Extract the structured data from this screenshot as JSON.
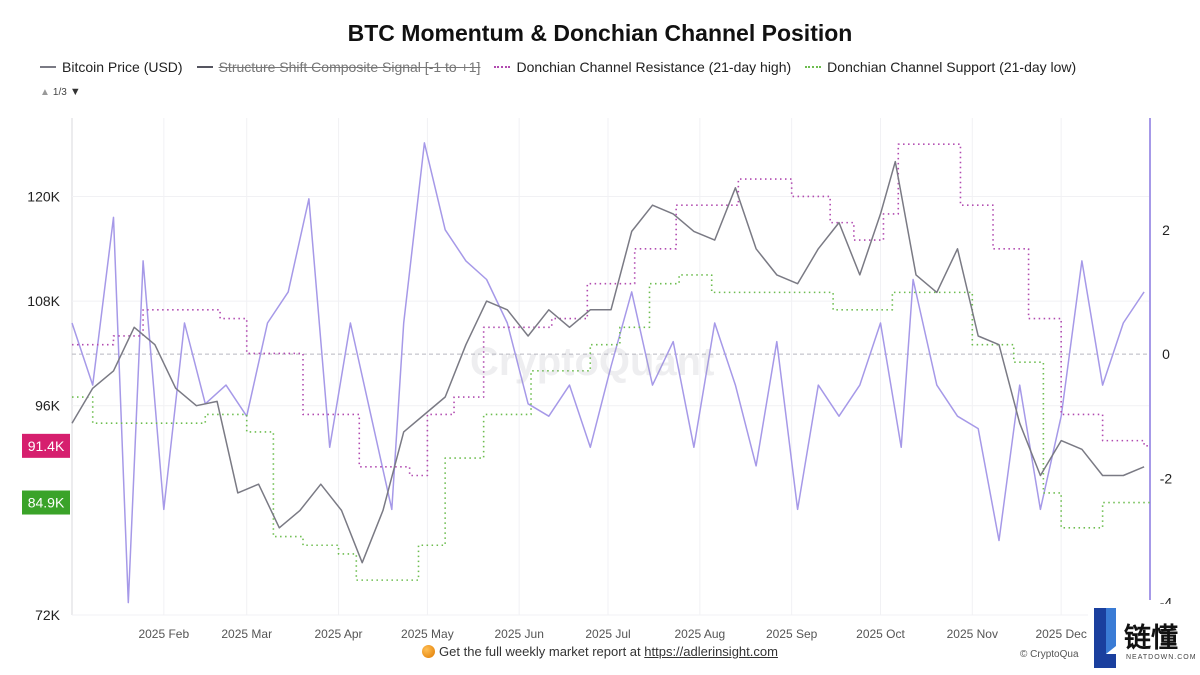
{
  "chart_data": {
    "type": "line",
    "title": "BTC Momentum & Donchian Channel Position",
    "x_axis": {
      "ticks": [
        "2025 Feb",
        "2025 Mar",
        "2025 Apr",
        "2025 May",
        "2025 Jun",
        "2025 Jul",
        "2025 Aug",
        "2025 Sep",
        "2025 Oct",
        "2025 Nov",
        "2025 Dec"
      ]
    },
    "y_axis_left": {
      "min": 72000,
      "max": 129000,
      "ticks": [
        "72K",
        "96K",
        "108K",
        "120K"
      ]
    },
    "y_axis_right": {
      "min": -4.2,
      "max": 3.8,
      "ticks": [
        "2",
        "0",
        "-2",
        "-4"
      ]
    },
    "legend_placement": "top",
    "grid": true,
    "series": [
      {
        "name": "Bitcoin Price (USD)",
        "axis": "left",
        "color": "#7a7a84",
        "visible": true,
        "style": "solid",
        "x": [
          "2025-01-01",
          "2025-01-08",
          "2025-01-15",
          "2025-01-22",
          "2025-01-29",
          "2025-02-05",
          "2025-02-12",
          "2025-02-19",
          "2025-02-26",
          "2025-03-05",
          "2025-03-12",
          "2025-03-19",
          "2025-03-26",
          "2025-04-02",
          "2025-04-09",
          "2025-04-16",
          "2025-04-23",
          "2025-04-30",
          "2025-05-07",
          "2025-05-14",
          "2025-05-21",
          "2025-05-28",
          "2025-06-04",
          "2025-06-11",
          "2025-06-18",
          "2025-06-25",
          "2025-07-02",
          "2025-07-09",
          "2025-07-16",
          "2025-07-23",
          "2025-07-30",
          "2025-08-06",
          "2025-08-13",
          "2025-08-20",
          "2025-08-27",
          "2025-09-03",
          "2025-09-10",
          "2025-09-17",
          "2025-09-24",
          "2025-10-01",
          "2025-10-06",
          "2025-10-13",
          "2025-10-20",
          "2025-10-27",
          "2025-11-03",
          "2025-11-10",
          "2025-11-17",
          "2025-11-24",
          "2025-12-01",
          "2025-12-08",
          "2025-12-15",
          "2025-12-22",
          "2025-12-29"
        ],
        "y": [
          94000,
          98000,
          100000,
          105000,
          103000,
          98000,
          96000,
          96500,
          86000,
          87000,
          82000,
          84000,
          87000,
          84000,
          78000,
          84000,
          93000,
          95000,
          97000,
          103000,
          108000,
          107000,
          104000,
          107000,
          105000,
          107000,
          107000,
          116000,
          119000,
          118000,
          116000,
          115000,
          121000,
          114000,
          111000,
          110000,
          114000,
          117000,
          111000,
          118000,
          124000,
          111000,
          109000,
          114000,
          104000,
          103000,
          94000,
          88000,
          92000,
          91000,
          88000,
          88000,
          89000
        ]
      },
      {
        "name": "Structure Shift Composite Signal [-1 to +1]",
        "axis": "right",
        "color": "#555560",
        "visible": false,
        "style": "solid"
      },
      {
        "name": "Donchian Channel Resistance (21-day high)",
        "axis": "left",
        "color": "#b14ab0",
        "visible": true,
        "style": "dotted",
        "x": [
          "2025-01-01",
          "2025-01-15",
          "2025-01-25",
          "2025-02-20",
          "2025-03-01",
          "2025-03-20",
          "2025-04-08",
          "2025-04-25",
          "2025-05-01",
          "2025-05-10",
          "2025-05-20",
          "2025-06-12",
          "2025-06-24",
          "2025-07-10",
          "2025-07-24",
          "2025-08-14",
          "2025-09-01",
          "2025-09-14",
          "2025-09-22",
          "2025-10-02",
          "2025-10-07",
          "2025-10-28",
          "2025-11-08",
          "2025-11-20",
          "2025-12-01",
          "2025-12-15",
          "2025-12-29"
        ],
        "y": [
          103000,
          104000,
          107000,
          106000,
          102000,
          95000,
          89000,
          88000,
          95000,
          97000,
          105000,
          106000,
          110000,
          114000,
          119000,
          122000,
          120000,
          117000,
          115000,
          118000,
          126000,
          119000,
          114000,
          106000,
          95000,
          92000,
          91400
        ]
      },
      {
        "name": "Donchian Channel Support (21-day low)",
        "axis": "left",
        "color": "#6dbd4f",
        "visible": true,
        "style": "dotted",
        "x": [
          "2025-01-01",
          "2025-01-08",
          "2025-02-15",
          "2025-03-01",
          "2025-03-10",
          "2025-03-20",
          "2025-04-01",
          "2025-04-07",
          "2025-04-28",
          "2025-05-07",
          "2025-05-20",
          "2025-06-05",
          "2025-06-25",
          "2025-07-05",
          "2025-07-15",
          "2025-07-25",
          "2025-08-05",
          "2025-09-01",
          "2025-09-15",
          "2025-09-25",
          "2025-10-05",
          "2025-10-20",
          "2025-11-01",
          "2025-11-15",
          "2025-11-25",
          "2025-12-01",
          "2025-12-15",
          "2025-12-29"
        ],
        "y": [
          97000,
          94000,
          95000,
          93000,
          81000,
          80000,
          79000,
          76000,
          80000,
          90000,
          95000,
          100000,
          103000,
          105000,
          110000,
          111000,
          109000,
          109000,
          107000,
          107000,
          109000,
          109000,
          103000,
          101000,
          86000,
          82000,
          84900,
          84900
        ]
      },
      {
        "name": "Structure Shift Composite Signal",
        "axis": "right",
        "color": "#a699e8",
        "visible": true,
        "style": "solid",
        "x": [
          "2025-01-01",
          "2025-01-08",
          "2025-01-15",
          "2025-01-20",
          "2025-01-25",
          "2025-02-01",
          "2025-02-08",
          "2025-02-15",
          "2025-02-22",
          "2025-03-01",
          "2025-03-08",
          "2025-03-15",
          "2025-03-22",
          "2025-03-29",
          "2025-04-05",
          "2025-04-12",
          "2025-04-19",
          "2025-04-23",
          "2025-04-30",
          "2025-05-07",
          "2025-05-14",
          "2025-05-21",
          "2025-05-28",
          "2025-06-04",
          "2025-06-11",
          "2025-06-18",
          "2025-06-25",
          "2025-07-02",
          "2025-07-09",
          "2025-07-16",
          "2025-07-23",
          "2025-07-30",
          "2025-08-06",
          "2025-08-13",
          "2025-08-20",
          "2025-08-27",
          "2025-09-03",
          "2025-09-10",
          "2025-09-17",
          "2025-09-24",
          "2025-10-01",
          "2025-10-08",
          "2025-10-12",
          "2025-10-20",
          "2025-10-27",
          "2025-11-03",
          "2025-11-10",
          "2025-11-17",
          "2025-11-24",
          "2025-12-01",
          "2025-12-08",
          "2025-12-15",
          "2025-12-22",
          "2025-12-29"
        ],
        "y": [
          0.5,
          -0.5,
          2.2,
          -4.0,
          1.5,
          -2.5,
          0.5,
          -0.8,
          -0.5,
          -1.0,
          0.5,
          1.0,
          2.5,
          -1.5,
          0.5,
          -1.0,
          -2.5,
          0.5,
          3.4,
          2.0,
          1.5,
          1.2,
          0.5,
          -0.8,
          -1.0,
          -0.5,
          -1.5,
          -0.2,
          1.0,
          -0.5,
          0.2,
          -1.5,
          0.5,
          -0.5,
          -1.8,
          0.2,
          -2.5,
          -0.5,
          -1.0,
          -0.5,
          0.5,
          -1.5,
          1.2,
          -0.5,
          -1.0,
          -1.2,
          -3.0,
          -0.5,
          -2.5,
          -1.0,
          1.5,
          -0.5,
          0.5,
          1.0
        ]
      }
    ],
    "price_badges": [
      {
        "label": "91.4K",
        "value": 91400,
        "color": "#d61f6e"
      },
      {
        "label": "84.9K",
        "value": 84900,
        "color": "#3aa329"
      }
    ],
    "zero_line": {
      "axis": "right",
      "value": 0
    },
    "legend_pager": "1/3"
  },
  "watermark": "CryptoQuant",
  "footer": {
    "text": "Get the full weekly market report at",
    "url": "https://adlerinsight.com"
  },
  "copyright": "© CryptoQua",
  "logo": {
    "cn": "链懂",
    "en": "NEATDOWN.COM"
  }
}
